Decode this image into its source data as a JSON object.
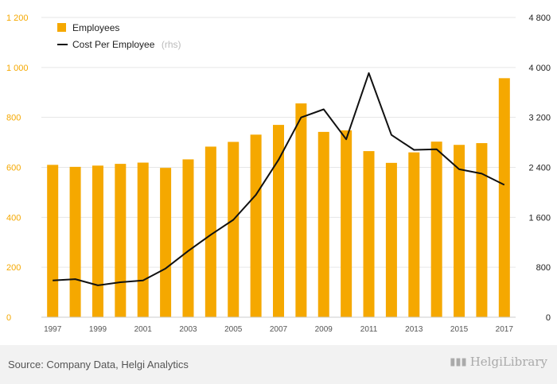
{
  "chart_data": {
    "type": "bar+line",
    "categories": [
      "1997",
      "1998",
      "1999",
      "2000",
      "2001",
      "2002",
      "2003",
      "2004",
      "2005",
      "2006",
      "2007",
      "2008",
      "2009",
      "2010",
      "2011",
      "2012",
      "2013",
      "2014",
      "2015",
      "2016",
      "2017"
    ],
    "x_tick_labels": [
      "1997",
      "1999",
      "2001",
      "2003",
      "2005",
      "2007",
      "2009",
      "2011",
      "2013",
      "2015",
      "2017"
    ],
    "series": [
      {
        "name": "Employees",
        "type": "bar",
        "axis": "left",
        "color": "#f5a800",
        "values": [
          610,
          602,
          607,
          614,
          619,
          598,
          632,
          683,
          702,
          731,
          770,
          856,
          742,
          748,
          665,
          618,
          660,
          703,
          690,
          697,
          957
        ]
      },
      {
        "name": "Cost Per Employee",
        "axis_note": "(rhs)",
        "type": "line",
        "axis": "right",
        "color": "#111111",
        "values": [
          590,
          610,
          510,
          560,
          590,
          780,
          1060,
          1320,
          1560,
          1960,
          2520,
          3200,
          3330,
          2850,
          3910,
          2920,
          2680,
          2690,
          2370,
          2300,
          2120
        ]
      }
    ],
    "y_left": {
      "min": 0,
      "max": 1200,
      "ticks": [
        "0",
        "200",
        "400",
        "600",
        "800",
        "1 000",
        "1 200"
      ]
    },
    "y_right": {
      "min": 0,
      "max": 4800,
      "ticks": [
        "0",
        "800",
        "1 600",
        "2 400",
        "3 200",
        "4 000",
        "4 800"
      ]
    },
    "legend_position": "top-left",
    "grid": "horizontal"
  },
  "footer": {
    "source": "Source: Company Data, Helgi Analytics",
    "logo_text": "HelgiLibrary"
  }
}
